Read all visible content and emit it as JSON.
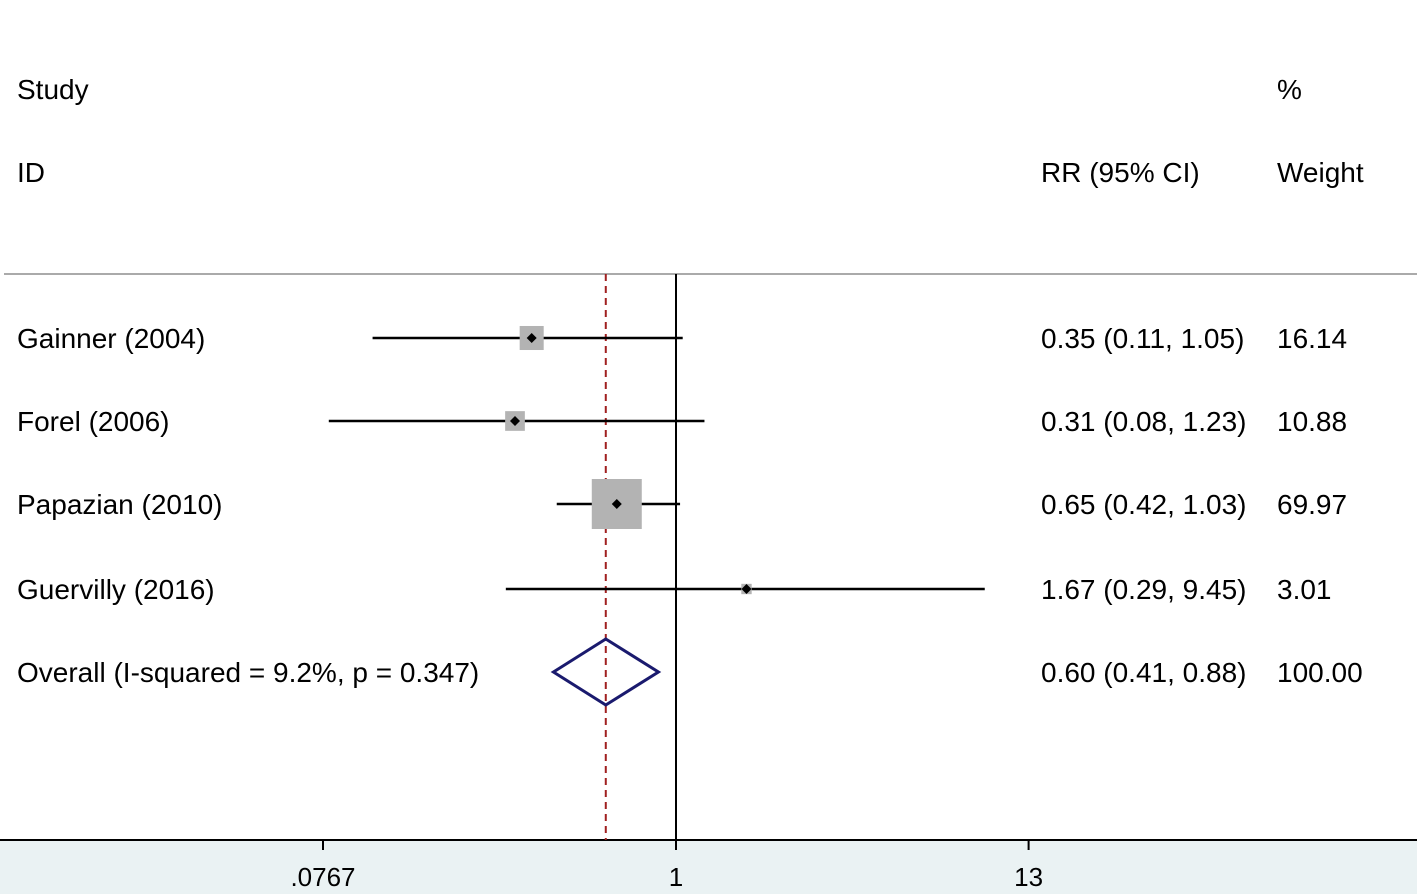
{
  "header": {
    "study": "Study",
    "id": "ID",
    "pct": "%",
    "rr_ci": "RR (95% CI)",
    "weight": "Weight"
  },
  "chart_data": {
    "type": "forest",
    "x_scale": "log",
    "x_ticks": [
      ".0767",
      "1",
      "13"
    ],
    "x_tick_values": [
      0.0767,
      1,
      13
    ],
    "null_line": 1,
    "pooled_estimate_line": 0.6,
    "studies": [
      {
        "label": "Gainner (2004)",
        "rr": 0.35,
        "ci_low": 0.11,
        "ci_high": 1.05,
        "rr_text": "0.35 (0.11, 1.05)",
        "weight": 16.14,
        "weight_text": "16.14"
      },
      {
        "label": "Forel (2006)",
        "rr": 0.31,
        "ci_low": 0.08,
        "ci_high": 1.23,
        "rr_text": "0.31 (0.08, 1.23)",
        "weight": 10.88,
        "weight_text": "10.88"
      },
      {
        "label": "Papazian (2010)",
        "rr": 0.65,
        "ci_low": 0.42,
        "ci_high": 1.03,
        "rr_text": "0.65 (0.42, 1.03)",
        "weight": 69.97,
        "weight_text": "69.97"
      },
      {
        "label": "Guervilly (2016)",
        "rr": 1.67,
        "ci_low": 0.29,
        "ci_high": 9.45,
        "rr_text": "1.67 (0.29, 9.45)",
        "weight": 3.01,
        "weight_text": "3.01"
      }
    ],
    "overall": {
      "label": "Overall  (I-squared = 9.2%, p = 0.347)",
      "rr": 0.6,
      "ci_low": 0.41,
      "ci_high": 0.88,
      "rr_text": "0.60 (0.41, 0.88)",
      "weight_text": "100.00"
    },
    "colors": {
      "background": "#eaf2f3",
      "plot_bg": "#ffffff",
      "ci_line": "#000000",
      "weight_box": "#b3b3b3",
      "diamond": "#1a1a6e",
      "pooled_line": "#a02020",
      "axis": "#000000"
    }
  }
}
